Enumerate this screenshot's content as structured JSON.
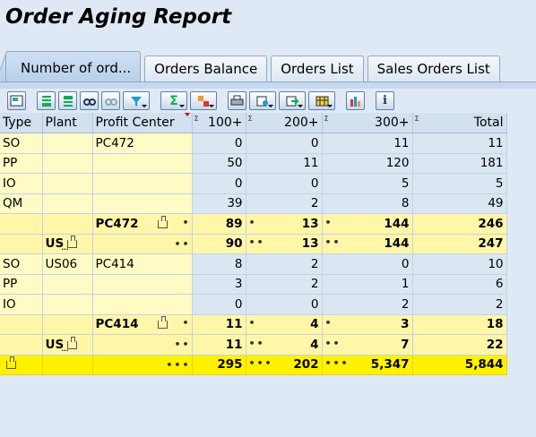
{
  "title": "Order Aging Report",
  "tabs": [
    "Number of ord...",
    "Orders Balance",
    "Orders List",
    "Sales Orders List"
  ],
  "toolbar": {
    "icons": [
      "details-icon",
      "sort-ascending-icon",
      "sort-descending-icon",
      "find-icon",
      "find-next-icon",
      "filter-icon",
      "total-icon",
      "subtotal-icon",
      "print-icon",
      "view-icon",
      "export-icon",
      "layout-icon",
      "graphic-icon",
      "info-icon"
    ]
  },
  "table": {
    "headers": {
      "type": "Type",
      "plant": "Plant",
      "profit_center": "Profit Center",
      "c100": "100+",
      "c200": "200+",
      "c300": "300+",
      "total": "Total",
      "sigma": "Σ"
    },
    "rows": [
      {
        "kind": "data",
        "type": "SO",
        "plant": "",
        "pc": "PC472",
        "c100": "0",
        "c200": "0",
        "c300": "11",
        "total": "11"
      },
      {
        "kind": "data",
        "type": "PP",
        "plant": "",
        "pc": "",
        "c100": "50",
        "c200": "11",
        "c300": "120",
        "total": "181"
      },
      {
        "kind": "data",
        "type": "IO",
        "plant": "",
        "pc": "",
        "c100": "0",
        "c200": "0",
        "c300": "5",
        "total": "5"
      },
      {
        "kind": "data",
        "type": "QM",
        "plant": "",
        "pc": "",
        "c100": "39",
        "c200": "2",
        "c300": "8",
        "total": "49"
      },
      {
        "kind": "sub1",
        "type": "",
        "plant": "",
        "pc": "PC472",
        "c100": "89",
        "c200": "13",
        "c300": "144",
        "total": "246",
        "dots": "•"
      },
      {
        "kind": "sub2",
        "type": "",
        "plant": "US",
        "pc": "",
        "c100": "90",
        "c200": "13",
        "c300": "144",
        "total": "247",
        "dots": "••"
      },
      {
        "kind": "data",
        "type": "SO",
        "plant": "US06",
        "pc": "PC414",
        "c100": "8",
        "c200": "2",
        "c300": "0",
        "total": "10"
      },
      {
        "kind": "data",
        "type": "PP",
        "plant": "",
        "pc": "",
        "c100": "3",
        "c200": "2",
        "c300": "1",
        "total": "6"
      },
      {
        "kind": "data",
        "type": "IO",
        "plant": "",
        "pc": "",
        "c100": "0",
        "c200": "0",
        "c300": "2",
        "total": "2"
      },
      {
        "kind": "sub1",
        "type": "",
        "plant": "",
        "pc": "PC414",
        "c100": "11",
        "c200": "4",
        "c300": "3",
        "total": "18",
        "dots": "•"
      },
      {
        "kind": "sub2",
        "type": "",
        "plant": "US",
        "pc": "",
        "c100": "11",
        "c200": "4",
        "c300": "7",
        "total": "22",
        "dots": "••"
      },
      {
        "kind": "grand",
        "type": "",
        "plant": "",
        "pc": "",
        "c100": "295",
        "c200": "202",
        "c300": "5,347",
        "total": "5,844",
        "dots": "•••"
      }
    ]
  }
}
